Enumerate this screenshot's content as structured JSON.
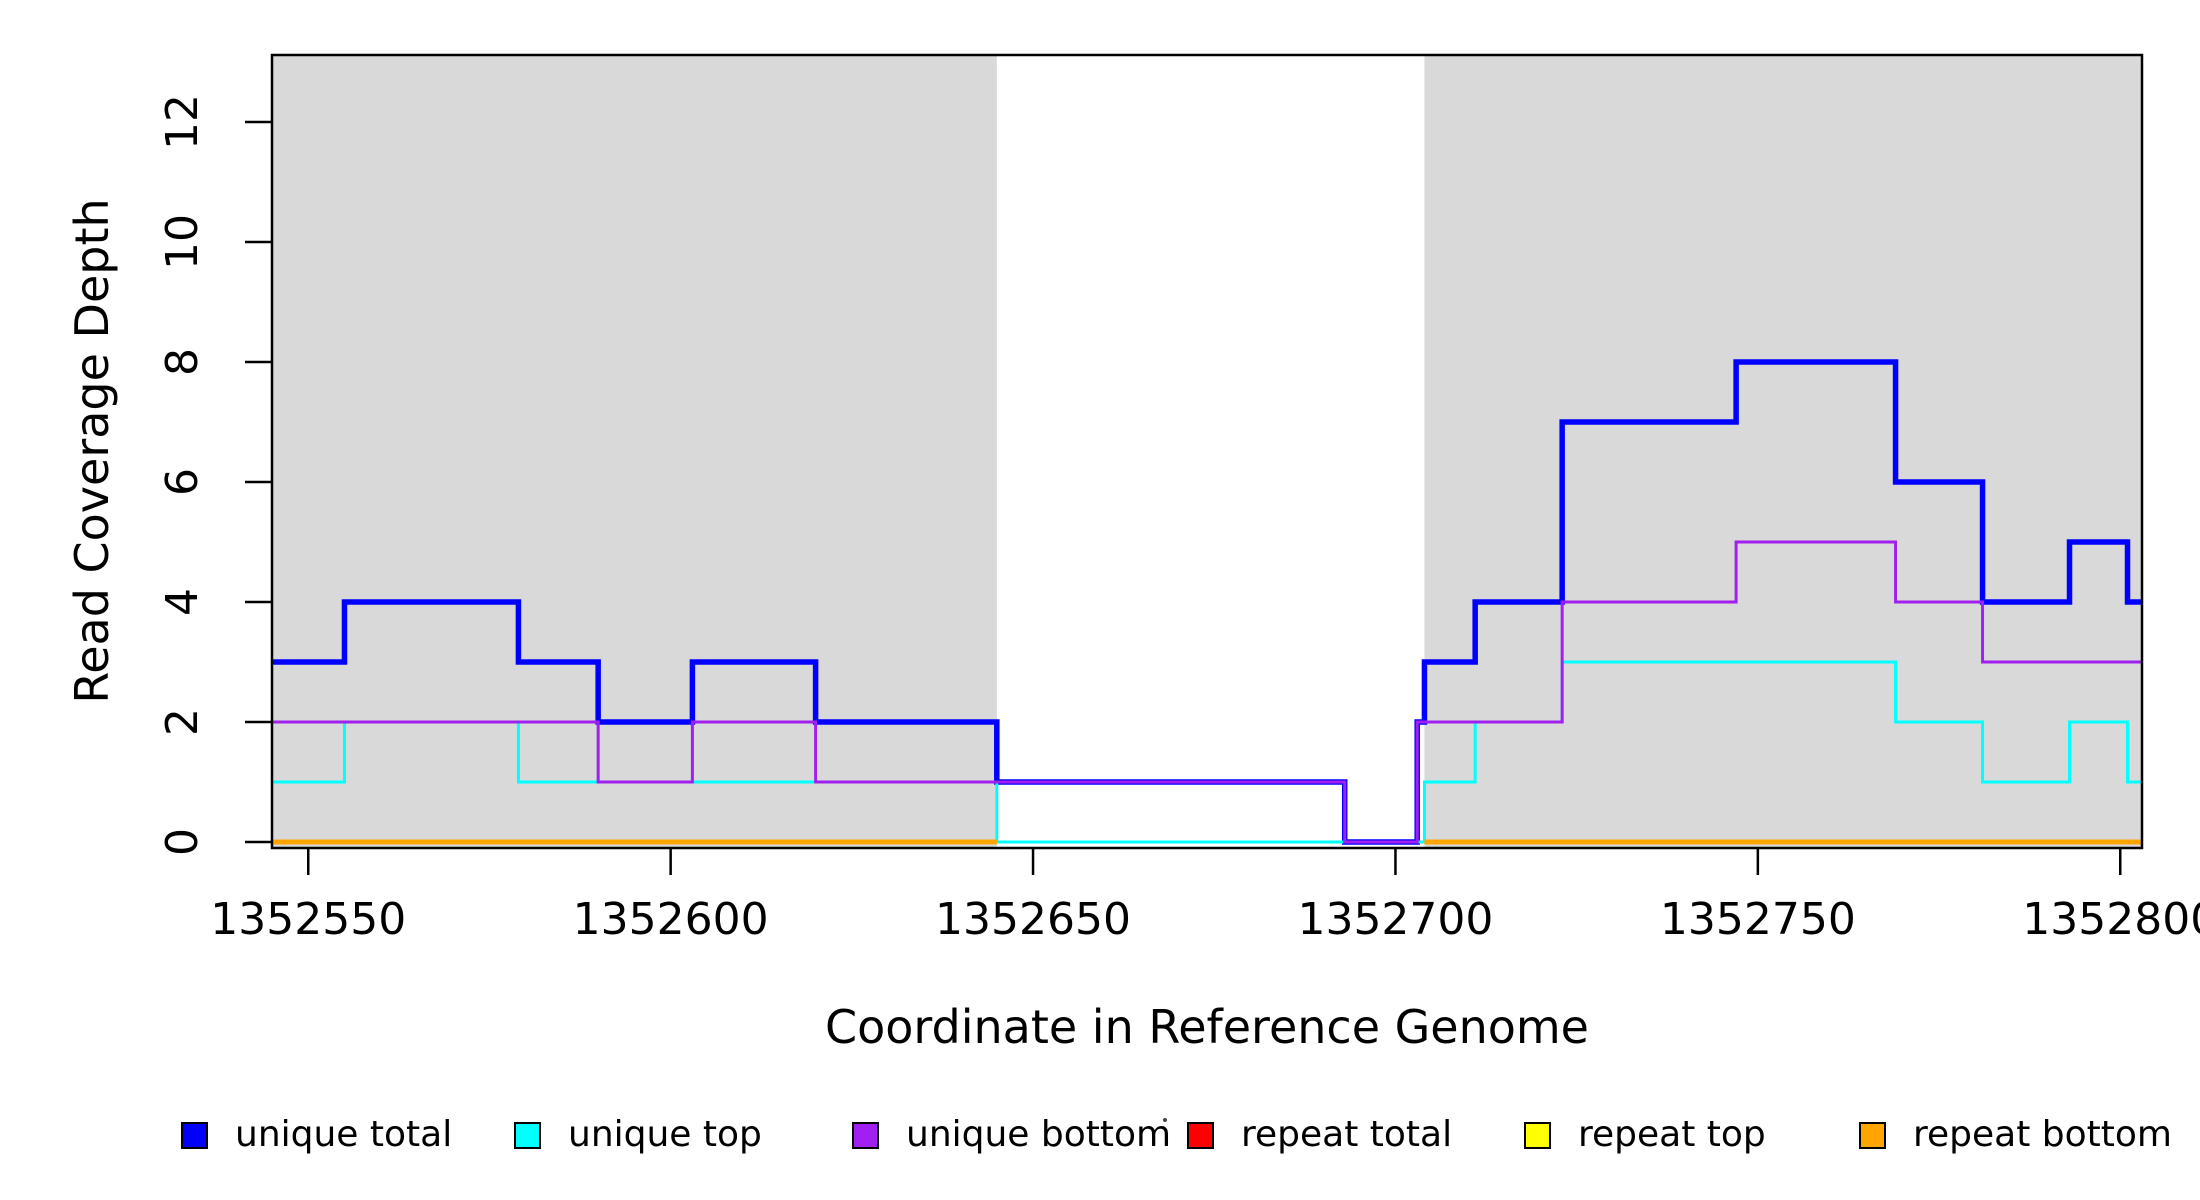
{
  "chart_data": {
    "type": "line",
    "subtype": "step-after-coverage",
    "title": "",
    "xlabel": "Coordinate in Reference Genome",
    "ylabel": "Read Coverage Depth",
    "xlim": [
      1352545,
      1352803
    ],
    "ylim": [
      0,
      13
    ],
    "grid": false,
    "legend_position": "bottom",
    "background_color": "#FFFFFF",
    "shaded_region_color": "#D9D9D9",
    "axis_color": "#000000",
    "shaded_regions": [
      {
        "x0": 1352545,
        "x1": 1352645
      },
      {
        "x0": 1352704,
        "x1": 1352803
      }
    ],
    "x_ticks": {
      "values": [
        1352550,
        1352600,
        1352650,
        1352700,
        1352750,
        1352800
      ],
      "labels": [
        "1352550",
        "1352600",
        "1352650",
        "1352700",
        "1352750",
        "1352800"
      ]
    },
    "y_ticks": {
      "values": [
        0,
        2,
        4,
        6,
        8,
        10,
        12
      ],
      "labels": [
        "0",
        "2",
        "4",
        "6",
        "8",
        "10",
        "12"
      ]
    },
    "series": [
      {
        "name": "unique total",
        "color": "#0000FF",
        "width": 5.5,
        "x_end": 1352803,
        "steps": [
          [
            1352545,
            3
          ],
          [
            1352555,
            4
          ],
          [
            1352579,
            3
          ],
          [
            1352590,
            2
          ],
          [
            1352603,
            3
          ],
          [
            1352620,
            2
          ],
          [
            1352645,
            1
          ],
          [
            1352693,
            0
          ],
          [
            1352703,
            2
          ],
          [
            1352704,
            3
          ],
          [
            1352711,
            4
          ],
          [
            1352723,
            7
          ],
          [
            1352747,
            8
          ],
          [
            1352769,
            6
          ],
          [
            1352781,
            4
          ],
          [
            1352793,
            5
          ],
          [
            1352801,
            4
          ]
        ]
      },
      {
        "name": "unique top",
        "color": "#00FFFF",
        "width": 3,
        "x_end": 1352803,
        "steps": [
          [
            1352545,
            1
          ],
          [
            1352555,
            2
          ],
          [
            1352579,
            1
          ],
          [
            1352645,
            0
          ],
          [
            1352704,
            1
          ],
          [
            1352711,
            2
          ],
          [
            1352723,
            3
          ],
          [
            1352769,
            2
          ],
          [
            1352781,
            1
          ],
          [
            1352793,
            2
          ],
          [
            1352801,
            1
          ]
        ]
      },
      {
        "name": "unique bottom",
        "color": "#A020F0",
        "width": 3,
        "x_end": 1352803,
        "steps": [
          [
            1352545,
            2
          ],
          [
            1352590,
            1
          ],
          [
            1352603,
            2
          ],
          [
            1352620,
            1
          ],
          [
            1352693,
            0
          ],
          [
            1352703,
            2
          ],
          [
            1352723,
            4
          ],
          [
            1352747,
            5
          ],
          [
            1352769,
            4
          ],
          [
            1352781,
            3
          ]
        ]
      },
      {
        "name": "repeat total",
        "color": "#FF0000",
        "width": 3,
        "value": 0,
        "segments": [
          [
            1352545,
            1352645
          ],
          [
            1352704,
            1352803
          ]
        ]
      },
      {
        "name": "repeat top",
        "color": "#FFFF00",
        "width": 3,
        "value": 0,
        "segments": [
          [
            1352545,
            1352645
          ],
          [
            1352704,
            1352803
          ]
        ]
      },
      {
        "name": "repeat bottom",
        "color": "#FFA500",
        "width": 5,
        "value": 0,
        "segments": [
          [
            1352545,
            1352645
          ],
          [
            1352704,
            1352803
          ]
        ]
      }
    ],
    "legend": [
      {
        "label": "unique total",
        "color": "#0000FF"
      },
      {
        "label": "unique top",
        "color": "#00FFFF"
      },
      {
        "label": "unique bottom",
        "color": "#A020F0"
      },
      {
        "label": "repeat total",
        "color": "#FF0000"
      },
      {
        "label": "repeat top",
        "color": "#FFFF00"
      },
      {
        "label": "repeat bottom",
        "color": "#FFA500"
      }
    ]
  }
}
